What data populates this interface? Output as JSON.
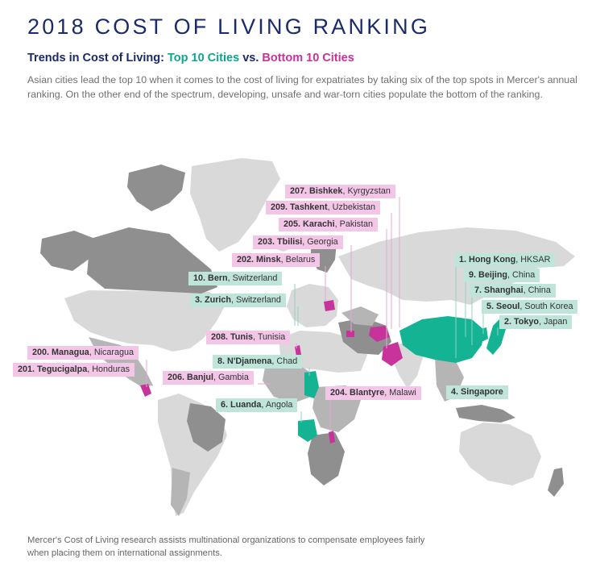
{
  "header": {
    "title": "2018 COST OF LIVING RANKING",
    "subtitle_prefix": "Trends in Cost of Living: ",
    "subtitle_top": "Top 10 Cities",
    "subtitle_vs": " vs. ",
    "subtitle_bottom": "Bottom 10 Cities",
    "intro": "Asian cities lead the top 10 when it comes to the cost of living for expatriates by taking six of the top spots in Mercer's annual ranking. On the other end of the spectrum, developing, unsafe and war-torn cities populate the bottom of the ranking."
  },
  "colors": {
    "title": "#1b2a6b",
    "top_highlight": "#0aa78b",
    "bottom_highlight": "#c8329b",
    "land_dark": "#8f8f8f",
    "land_mid": "#b5b5b5",
    "land_light": "#d9d9d9"
  },
  "labels": {
    "bottom10": [
      {
        "rank": "207.",
        "city": "Bishkek",
        "country": "Kyrgyzstan"
      },
      {
        "rank": "209.",
        "city": "Tashkent",
        "country": "Uzbekistan"
      },
      {
        "rank": "205.",
        "city": "Karachi",
        "country": "Pakistan"
      },
      {
        "rank": "203.",
        "city": "Tbilisi",
        "country": "Georgia"
      },
      {
        "rank": "202.",
        "city": "Minsk",
        "country": "Belarus"
      },
      {
        "rank": "208.",
        "city": "Tunis",
        "country": "Tunisia"
      },
      {
        "rank": "200.",
        "city": "Managua",
        "country": "Nicaragua"
      },
      {
        "rank": "201.",
        "city": "Tegucigalpa",
        "country": "Honduras"
      },
      {
        "rank": "206.",
        "city": "Banjul",
        "country": "Gambia"
      },
      {
        "rank": "204.",
        "city": "Blantyre",
        "country": "Malawi"
      }
    ],
    "top10": [
      {
        "rank": "1.",
        "city": "Hong Kong",
        "country": "HKSAR"
      },
      {
        "rank": "9.",
        "city": "Beijing",
        "country": "China"
      },
      {
        "rank": "7.",
        "city": "Shanghai",
        "country": "China"
      },
      {
        "rank": "5.",
        "city": "Seoul",
        "country": "South Korea"
      },
      {
        "rank": "2.",
        "city": "Tokyo",
        "country": "Japan"
      },
      {
        "rank": "10.",
        "city": "Bern",
        "country": "Switzerland"
      },
      {
        "rank": "3.",
        "city": "Zurich",
        "country": "Switzerland"
      },
      {
        "rank": "8.",
        "city": "N'Djamena",
        "country": "Chad"
      },
      {
        "rank": "6.",
        "city": "Luanda",
        "country": "Angola"
      },
      {
        "rank": "4.",
        "city": "Singapore",
        "country": ""
      }
    ]
  },
  "footer": {
    "text": "Mercer's Cost of Living research assists multinational organizations to compensate employees fairly when placing them on international assignments."
  }
}
